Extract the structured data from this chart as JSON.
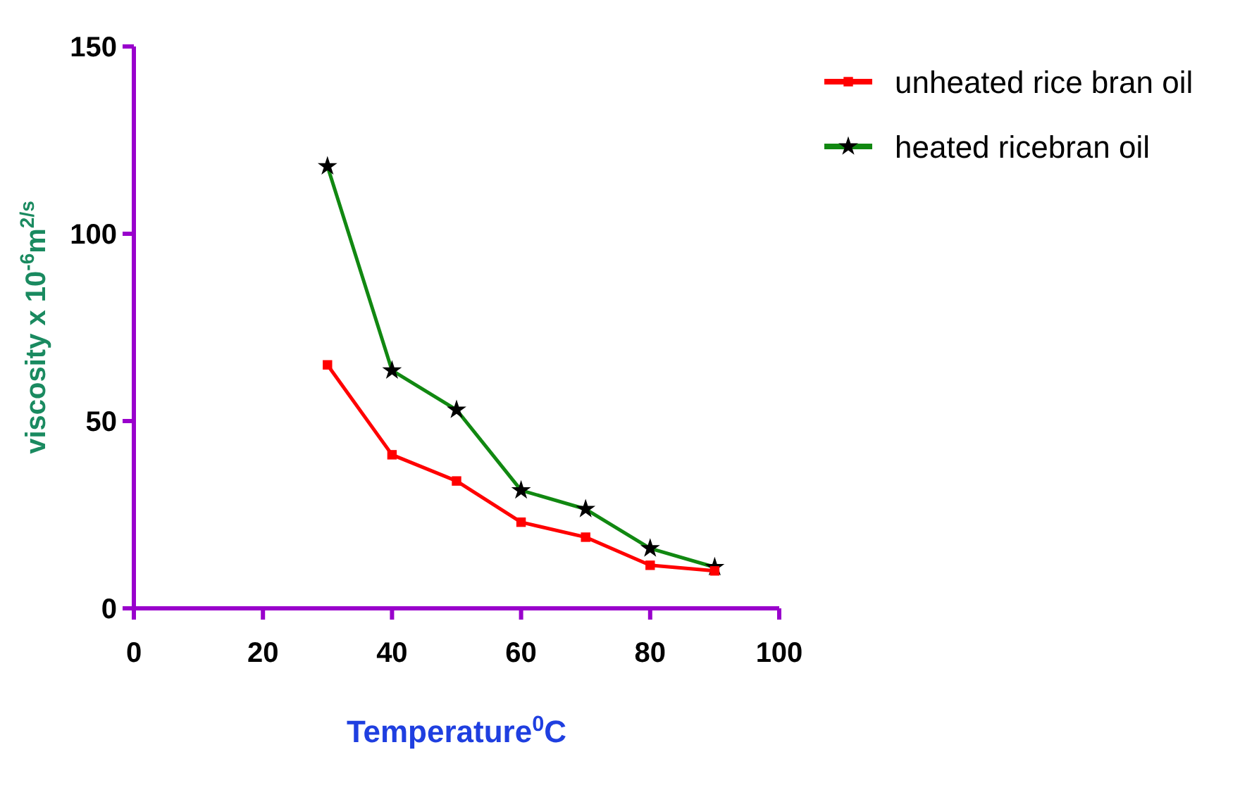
{
  "chart_data": {
    "type": "line",
    "xlabel": "Temperature$^{0}$C",
    "ylabel": "viscosity x 10$^{-6}$m$^{2/s}$",
    "x": [
      30,
      40,
      50,
      60,
      70,
      80,
      90
    ],
    "series": [
      {
        "name": "unheated rice bran oil",
        "color": "#ff0000",
        "marker": "square",
        "values": [
          65,
          41,
          34,
          23,
          19,
          11.5,
          10
        ]
      },
      {
        "name": "heated ricebran oil",
        "color": "#118811",
        "marker": "star",
        "values": [
          118,
          63.5,
          53,
          31.5,
          26.5,
          16,
          11
        ]
      }
    ],
    "xlim": [
      0,
      100
    ],
    "xticks": [
      0,
      20,
      40,
      60,
      80,
      100
    ],
    "ylim": [
      0,
      150
    ],
    "yticks": [
      0,
      50,
      100,
      150
    ],
    "grid": false,
    "legend": "top right",
    "line_style": "solid"
  }
}
